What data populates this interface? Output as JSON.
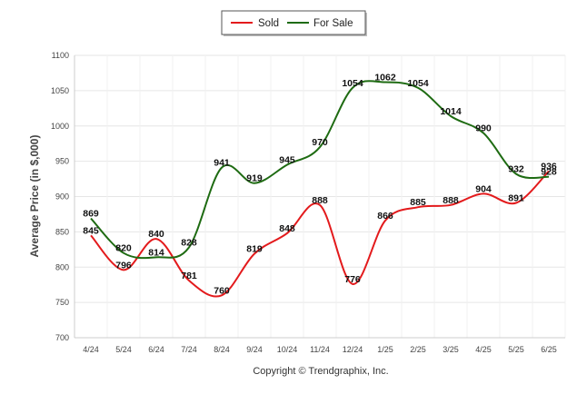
{
  "chart_data": {
    "type": "line",
    "title": "",
    "xlabel": "",
    "ylabel": "Average Price (in $,000)",
    "categories": [
      "4/24",
      "5/24",
      "6/24",
      "7/24",
      "8/24",
      "9/24",
      "10/24",
      "11/24",
      "12/24",
      "1/25",
      "2/25",
      "3/25",
      "4/25",
      "5/25",
      "6/25"
    ],
    "ylim": [
      700,
      1100
    ],
    "yticks": [
      700,
      750,
      800,
      850,
      900,
      950,
      1000,
      1050,
      1100
    ],
    "grid": true,
    "legend_position": "top-center",
    "series": [
      {
        "name": "Sold",
        "color": "#e31a1c",
        "values": [
          845,
          796,
          840,
          781,
          760,
          819,
          848,
          888,
          776,
          866,
          885,
          888,
          904,
          891,
          936
        ]
      },
      {
        "name": "For Sale",
        "color": "#1e6b12",
        "values": [
          869,
          820,
          814,
          828,
          941,
          919,
          945,
          970,
          1054,
          1062,
          1054,
          1014,
          990,
          932,
          928
        ]
      }
    ]
  },
  "footer": {
    "copyright": "Copyright © Trendgraphix, Inc."
  }
}
